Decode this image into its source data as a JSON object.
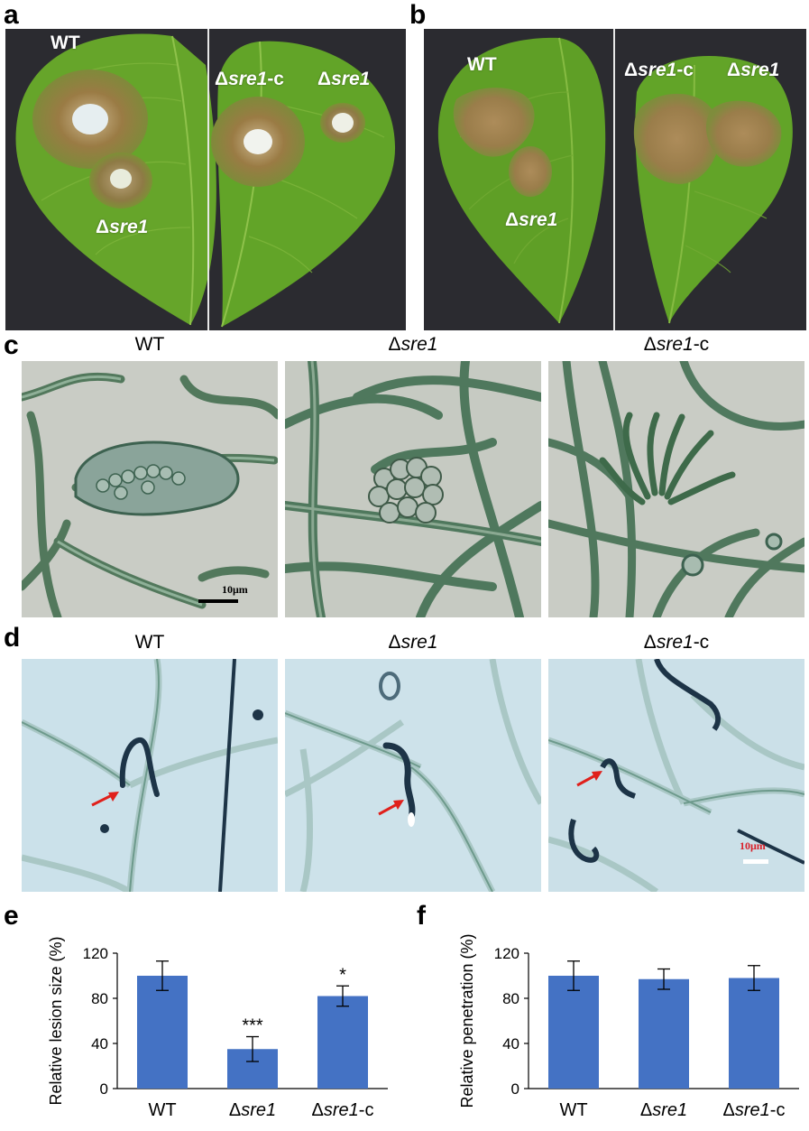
{
  "panels": {
    "a": {
      "letter": "a",
      "labels": {
        "wt": "WT",
        "mut_prefix": "Δ",
        "mut_gene": "sre1",
        "comp_prefix": "Δ",
        "comp_gene": "sre1",
        "comp_suffix": "-c"
      }
    },
    "b": {
      "letter": "b",
      "labels": {
        "wt": "WT",
        "mut_prefix": "Δ",
        "mut_gene": "sre1",
        "comp_prefix": "Δ",
        "comp_gene": "sre1",
        "comp_suffix": "-c"
      }
    },
    "c": {
      "letter": "c",
      "columns": [
        "WT",
        "Δsre1",
        "Δsre1-c"
      ],
      "scale_bar": "10μm"
    },
    "d": {
      "letter": "d",
      "columns": [
        "WT",
        "Δsre1",
        "Δsre1-c"
      ],
      "scale_bar": "10μm"
    },
    "e": {
      "letter": "e"
    },
    "f": {
      "letter": "f"
    }
  },
  "genotype_labels": {
    "wt": "WT",
    "delta": "Δ",
    "gene": "sre1",
    "comp_suffix": "-c"
  },
  "colors": {
    "bar": "#4472C4",
    "leaf": "#6fae2d",
    "lesion": "#9c7a3c",
    "arrow": "#e0201b",
    "micro_bg": "#c8ccc6",
    "stain_bg": "#cfe3ea"
  },
  "chart_data": [
    {
      "type": "bar",
      "panel": "e",
      "categories": [
        "WT",
        "Δsre1",
        "Δsre1-c"
      ],
      "values": [
        100,
        35,
        82
      ],
      "errors": [
        13,
        11,
        9
      ],
      "significance": [
        "",
        "***",
        "*"
      ],
      "ylabel": "Relative lesion size (%)",
      "ylim": [
        0,
        120
      ],
      "yticks": [
        0,
        40,
        80,
        120
      ],
      "grid": false
    },
    {
      "type": "bar",
      "panel": "f",
      "categories": [
        "WT",
        "Δsre1",
        "Δsre1-c"
      ],
      "values": [
        100,
        97,
        98
      ],
      "errors": [
        13,
        9,
        11
      ],
      "significance": [
        "",
        "",
        ""
      ],
      "ylabel": "Relative penetration (%)",
      "ylim": [
        0,
        120
      ],
      "yticks": [
        0,
        40,
        80,
        120
      ],
      "grid": false
    }
  ]
}
